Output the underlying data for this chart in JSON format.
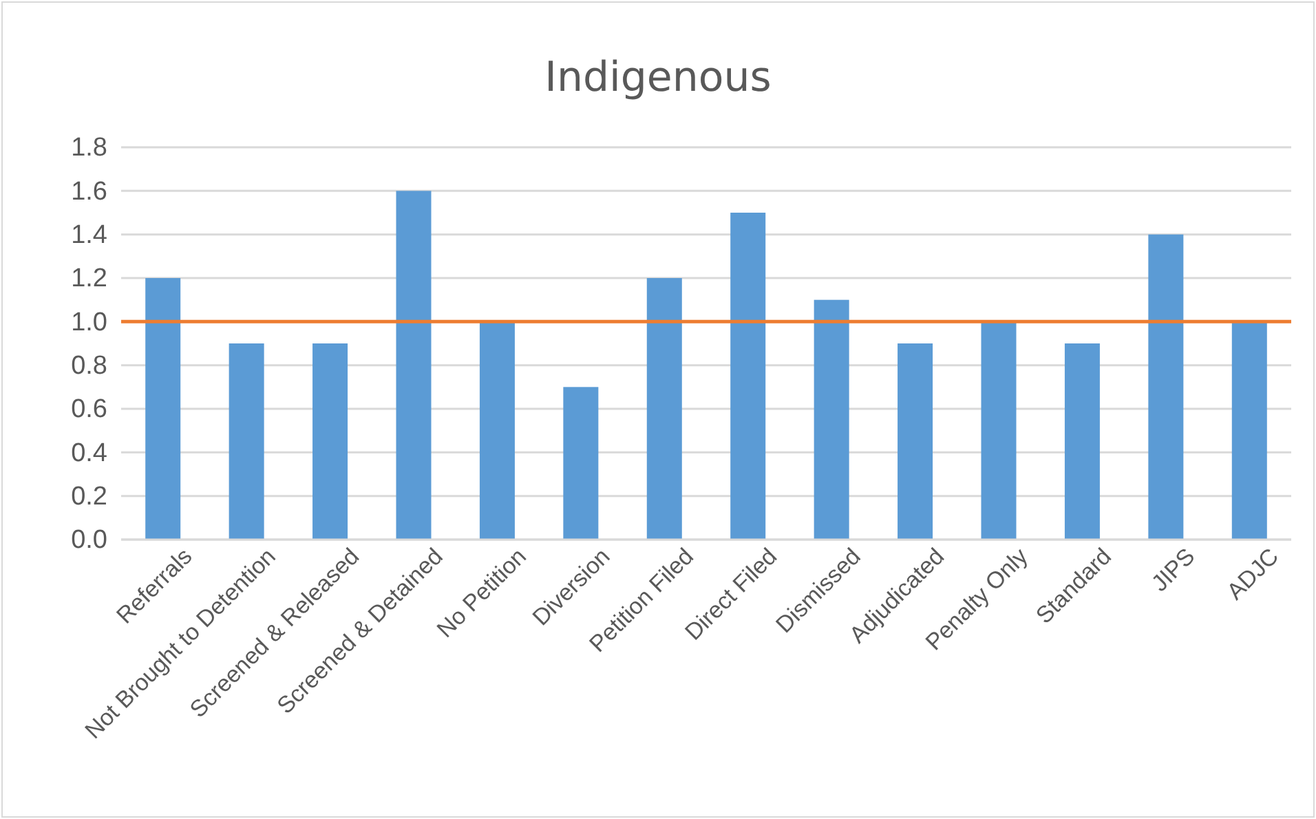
{
  "chart_data": {
    "type": "bar",
    "title": "Indigenous",
    "categories": [
      "Referrals",
      "Not Brought to Detention",
      "Screened & Released",
      "Screened & Detained",
      "No Petition",
      "Diversion",
      "Petition Filed",
      "Direct Filed",
      "Dismissed",
      "Adjudicated",
      "Penalty Only",
      "Standard",
      "JIPS",
      "ADJC"
    ],
    "values": [
      1.2,
      0.9,
      0.9,
      1.6,
      1.0,
      0.7,
      1.2,
      1.5,
      1.1,
      0.9,
      1.0,
      0.9,
      1.4,
      1.0
    ],
    "color": "#5b9bd5",
    "ylim": [
      0,
      1.8
    ],
    "yticks": [
      {
        "value": 0,
        "label": "0.0"
      },
      {
        "value": 0.2,
        "label": "0.2"
      },
      {
        "value": 0.4,
        "label": "0.4"
      },
      {
        "value": 0.6,
        "label": "0.6"
      },
      {
        "value": 0.8,
        "label": "0.8"
      },
      {
        "value": 1,
        "label": "1.0"
      },
      {
        "value": 1.2,
        "label": "1.2"
      },
      {
        "value": 1.4,
        "label": "1.4"
      },
      {
        "value": 1.6,
        "label": "1.6"
      },
      {
        "value": 1.8,
        "label": "1.8"
      }
    ],
    "grid": "y",
    "ref_lines": [
      {
        "axis": "y",
        "value": 1.0,
        "color": "#ed7d31"
      }
    ]
  }
}
